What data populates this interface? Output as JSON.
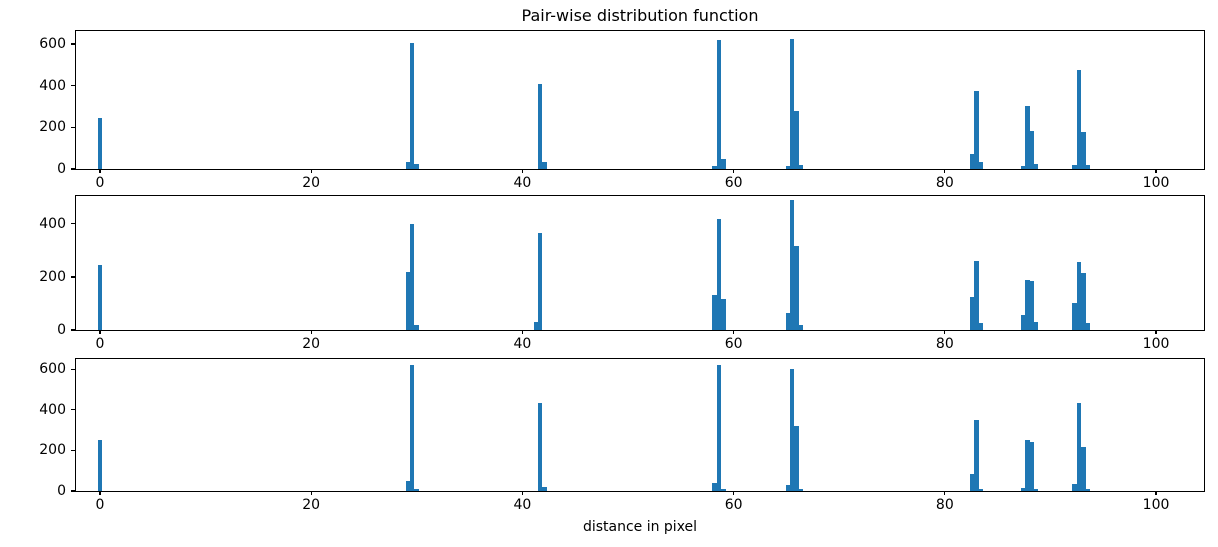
{
  "title": "Pair-wise distribution function",
  "xlabel": "distance in pixel",
  "bar_color_hex": "#1f77b4",
  "chart_data": {
    "type": "bar",
    "title": "Pair-wise distribution function",
    "xlabel": "distance in pixel",
    "ylabel": "",
    "grid": false,
    "legend": false,
    "xlim": [
      -2.27,
      104.73
    ],
    "xticks": [
      0,
      20,
      40,
      60,
      80,
      100
    ],
    "bin_width": 0.42,
    "subplots": [
      {
        "name": "top",
        "ylim": [
          -10,
          662
        ],
        "yticks": [
          0,
          200,
          400,
          600
        ],
        "bars": [
          [
            -0.21,
            245
          ],
          [
            28.94,
            35
          ],
          [
            29.36,
            605
          ],
          [
            29.78,
            25
          ],
          [
            41.48,
            410
          ],
          [
            41.9,
            35
          ],
          [
            57.98,
            15
          ],
          [
            58.4,
            620
          ],
          [
            58.82,
            50
          ],
          [
            64.92,
            12
          ],
          [
            65.34,
            625
          ],
          [
            65.76,
            280
          ],
          [
            66.18,
            18
          ],
          [
            82.38,
            70
          ],
          [
            82.8,
            375
          ],
          [
            83.22,
            35
          ],
          [
            87.18,
            15
          ],
          [
            87.6,
            300
          ],
          [
            88.02,
            180
          ],
          [
            88.44,
            25
          ],
          [
            92.06,
            20
          ],
          [
            92.48,
            475
          ],
          [
            92.9,
            175
          ],
          [
            93.32,
            20
          ]
        ]
      },
      {
        "name": "middle",
        "ylim": [
          -8,
          505
        ],
        "yticks": [
          0,
          200,
          400
        ],
        "bars": [
          [
            -0.21,
            245
          ],
          [
            28.94,
            220
          ],
          [
            29.36,
            400
          ],
          [
            29.78,
            20
          ],
          [
            41.06,
            30
          ],
          [
            41.48,
            365
          ],
          [
            57.98,
            133
          ],
          [
            58.4,
            420
          ],
          [
            58.82,
            115
          ],
          [
            64.92,
            65
          ],
          [
            65.34,
            490
          ],
          [
            65.76,
            318
          ],
          [
            66.18,
            20
          ],
          [
            82.38,
            123
          ],
          [
            82.8,
            260
          ],
          [
            83.22,
            25
          ],
          [
            87.18,
            55
          ],
          [
            87.6,
            190
          ],
          [
            88.02,
            185
          ],
          [
            88.44,
            30
          ],
          [
            92.06,
            100
          ],
          [
            92.48,
            255
          ],
          [
            92.9,
            215
          ],
          [
            93.32,
            25
          ]
        ]
      },
      {
        "name": "bottom",
        "ylim": [
          -10,
          650
        ],
        "yticks": [
          0,
          200,
          400,
          600
        ],
        "bars": [
          [
            -0.21,
            250
          ],
          [
            28.94,
            50
          ],
          [
            29.36,
            620
          ],
          [
            29.78,
            12
          ],
          [
            41.48,
            435
          ],
          [
            41.9,
            20
          ],
          [
            57.98,
            40
          ],
          [
            58.4,
            620
          ],
          [
            58.82,
            10
          ],
          [
            64.92,
            30
          ],
          [
            65.34,
            600
          ],
          [
            65.76,
            320
          ],
          [
            66.18,
            10
          ],
          [
            82.38,
            85
          ],
          [
            82.8,
            350
          ],
          [
            83.22,
            12
          ],
          [
            87.18,
            15
          ],
          [
            87.6,
            250
          ],
          [
            88.02,
            240
          ],
          [
            88.44,
            10
          ],
          [
            92.06,
            35
          ],
          [
            92.48,
            435
          ],
          [
            92.9,
            215
          ],
          [
            93.32,
            10
          ]
        ]
      }
    ]
  }
}
